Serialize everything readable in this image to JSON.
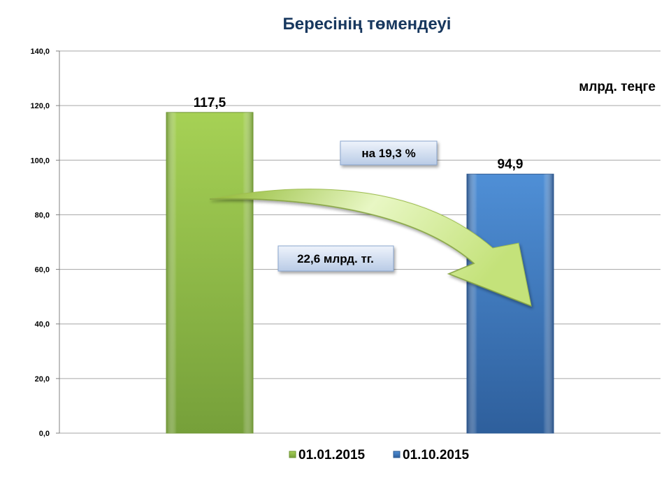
{
  "chart_data": {
    "type": "bar",
    "title": "Бересінің төмендеуі",
    "unit_label": "млрд. теңге",
    "categories": [
      "01.01.2015",
      "01.10.2015"
    ],
    "values": [
      117.5,
      94.9
    ],
    "value_labels": [
      "117,5",
      "94,9"
    ],
    "ylim": [
      0,
      140
    ],
    "yticks": [
      0,
      20,
      40,
      60,
      80,
      100,
      120,
      140
    ],
    "ytick_labels": [
      "0,0",
      "20,0",
      "40,0",
      "60,0",
      "80,0",
      "100,0",
      "120,0",
      "140,0"
    ],
    "grid": true,
    "legend_position": "bottom",
    "colors": [
      "#8fbc45",
      "#4a86c8"
    ],
    "annotations": {
      "percent": "на 19,3 %",
      "amount": "22,6 млрд. тг."
    }
  }
}
